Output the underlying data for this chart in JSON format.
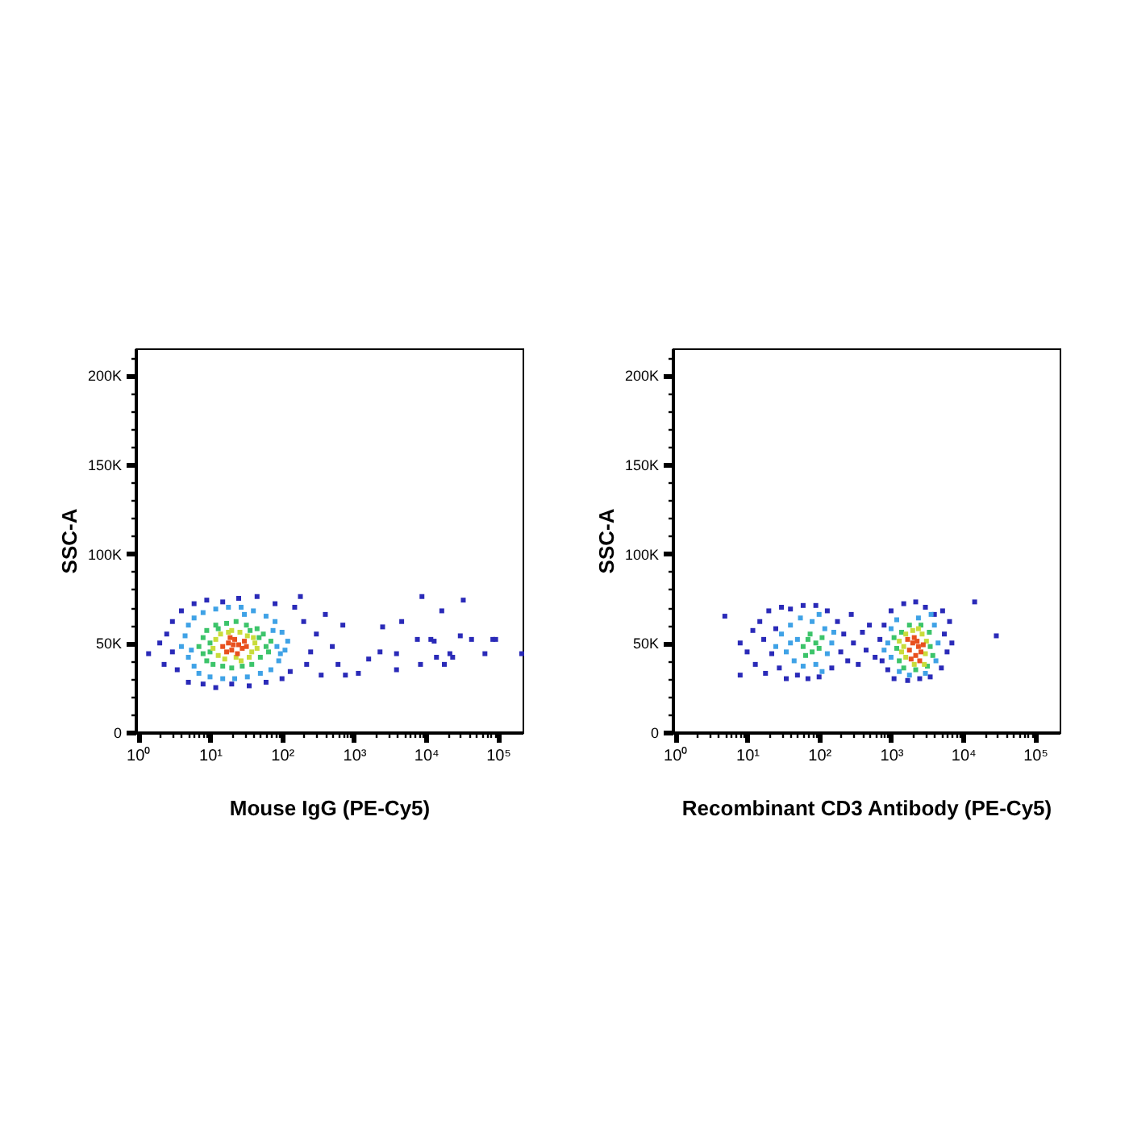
{
  "chart_data": [
    {
      "type": "scatter",
      "xlabel": "Mouse IgG (PE-Cy5)",
      "ylabel": "SSC-A",
      "log": "x",
      "xlim": [
        0.92,
        220000
      ],
      "ylim": [
        0,
        215000
      ],
      "xticks": [
        {
          "value": 1,
          "label": "10⁰"
        },
        {
          "value": 2,
          "label": null
        },
        {
          "value": 3,
          "label": null
        },
        {
          "value": 4,
          "label": null
        },
        {
          "value": 5,
          "label": null
        },
        {
          "value": 6,
          "label": null
        },
        {
          "value": 7,
          "label": null
        },
        {
          "value": 8,
          "label": null
        },
        {
          "value": 9,
          "label": null
        },
        {
          "value": 10,
          "label": "10¹"
        },
        {
          "value": 20,
          "label": null
        },
        {
          "value": 30,
          "label": null
        },
        {
          "value": 40,
          "label": null
        },
        {
          "value": 50,
          "label": null
        },
        {
          "value": 60,
          "label": null
        },
        {
          "value": 70,
          "label": null
        },
        {
          "value": 80,
          "label": null
        },
        {
          "value": 90,
          "label": null
        },
        {
          "value": 100,
          "label": "10²"
        },
        {
          "value": 200,
          "label": null
        },
        {
          "value": 300,
          "label": null
        },
        {
          "value": 400,
          "label": null
        },
        {
          "value": 500,
          "label": null
        },
        {
          "value": 600,
          "label": null
        },
        {
          "value": 700,
          "label": null
        },
        {
          "value": 800,
          "label": null
        },
        {
          "value": 900,
          "label": null
        },
        {
          "value": 1000,
          "label": "10³"
        },
        {
          "value": 2000,
          "label": null
        },
        {
          "value": 3000,
          "label": null
        },
        {
          "value": 4000,
          "label": null
        },
        {
          "value": 5000,
          "label": null
        },
        {
          "value": 6000,
          "label": null
        },
        {
          "value": 7000,
          "label": null
        },
        {
          "value": 8000,
          "label": null
        },
        {
          "value": 9000,
          "label": null
        },
        {
          "value": 10000,
          "label": "10⁴"
        },
        {
          "value": 20000,
          "label": null
        },
        {
          "value": 30000,
          "label": null
        },
        {
          "value": 40000,
          "label": null
        },
        {
          "value": 50000,
          "label": null
        },
        {
          "value": 60000,
          "label": null
        },
        {
          "value": 70000,
          "label": null
        },
        {
          "value": 80000,
          "label": null
        },
        {
          "value": 90000,
          "label": null
        },
        {
          "value": 100000,
          "label": "10⁵"
        }
      ],
      "yticks": [
        0,
        {
          "value": 10000,
          "label": null
        },
        {
          "value": 20000,
          "label": null
        },
        {
          "value": 30000,
          "label": null
        },
        {
          "value": 40000,
          "label": null
        },
        {
          "value": 50000,
          "label": "50K"
        },
        {
          "value": 60000,
          "label": null
        },
        {
          "value": 70000,
          "label": null
        },
        {
          "value": 80000,
          "label": null
        },
        {
          "value": 90000,
          "label": null
        },
        {
          "value": 100000,
          "label": "100K"
        },
        {
          "value": 110000,
          "label": null
        },
        {
          "value": 120000,
          "label": null
        },
        {
          "value": 130000,
          "label": null
        },
        {
          "value": 140000,
          "label": null
        },
        {
          "value": 150000,
          "label": "150K"
        },
        {
          "value": 160000,
          "label": null
        },
        {
          "value": 170000,
          "label": null
        },
        {
          "value": 180000,
          "label": null
        },
        {
          "value": 190000,
          "label": null
        },
        {
          "value": 200000,
          "label": "200K"
        },
        {
          "value": 210000,
          "label": null
        }
      ],
      "series": [
        {
          "color": "#2a2ab8",
          "x": [
            1.4,
            2,
            2.3,
            2.5,
            3,
            3,
            3.5,
            4,
            5,
            6,
            8,
            9,
            12,
            15,
            20,
            25,
            35,
            45,
            60,
            80,
            100,
            130,
            150,
            180,
            200,
            220,
            250,
            300,
            350,
            400,
            500,
            600,
            700,
            760,
            1150,
            1600,
            2300,
            2500,
            3900,
            3900,
            4600,
            7600,
            8400,
            8800,
            11700,
            13000,
            14000,
            16600,
            18000,
            21500,
            23500,
            30000,
            33000,
            43000,
            66000,
            85000,
            93000,
            214000
          ],
          "values": [
            44000,
            50000,
            38000,
            55000,
            45000,
            62000,
            35000,
            68000,
            28000,
            72000,
            27000,
            74000,
            25000,
            73000,
            27000,
            75000,
            26000,
            76000,
            28000,
            72000,
            30000,
            34000,
            70000,
            76000,
            62000,
            38000,
            45000,
            55000,
            32000,
            66000,
            48000,
            38000,
            60000,
            32000,
            33000,
            41000,
            45000,
            59000,
            35000,
            44000,
            62000,
            52000,
            38000,
            76000,
            52000,
            51000,
            42000,
            68000,
            38000,
            44000,
            42000,
            54000,
            74000,
            52000,
            44000,
            52000,
            52000,
            44000
          ]
        },
        {
          "color": "#3fa2e6",
          "x": [
            4,
            4.5,
            5,
            5,
            5.5,
            6,
            6,
            7,
            8,
            10,
            12,
            15,
            18,
            22,
            27,
            30,
            33,
            40,
            50,
            60,
            70,
            75,
            80,
            85,
            90,
            95,
            100,
            110,
            120
          ],
          "values": [
            48000,
            54000,
            42000,
            60000,
            46000,
            37000,
            64000,
            33000,
            67000,
            31000,
            69000,
            30000,
            70000,
            30000,
            70000,
            66000,
            31000,
            68000,
            33000,
            65000,
            35000,
            57000,
            62000,
            48000,
            40000,
            44000,
            56000,
            46000,
            51000
          ]
        },
        {
          "color": "#3cc46a",
          "x": [
            7,
            8,
            8,
            9,
            9,
            10,
            10,
            11,
            12,
            13,
            15,
            17,
            20,
            23,
            28,
            32,
            36,
            38,
            45,
            48,
            50,
            55,
            60,
            65,
            70
          ],
          "values": [
            48000,
            44000,
            53000,
            40000,
            57000,
            50000,
            45000,
            38000,
            60000,
            58000,
            37000,
            61000,
            36000,
            62000,
            37000,
            60000,
            57000,
            38000,
            58000,
            53000,
            42000,
            55000,
            48000,
            45000,
            51000
          ]
        },
        {
          "color": "#c9dc3a",
          "x": [
            11,
            12,
            13,
            14,
            16,
            18,
            20,
            23,
            26,
            27,
            33,
            35,
            38,
            40,
            42,
            45
          ],
          "values": [
            47000,
            52000,
            43000,
            55000,
            41000,
            56000,
            57000,
            42000,
            56000,
            40000,
            54000,
            42000,
            45000,
            53000,
            50000,
            47000
          ]
        },
        {
          "color": "#e8501e",
          "x": [
            15,
            17,
            18,
            19,
            20,
            21,
            22,
            24,
            25,
            28,
            30,
            32
          ],
          "values": [
            48000,
            45000,
            50000,
            53000,
            46000,
            49000,
            52000,
            44000,
            49000,
            47000,
            51000,
            48000
          ]
        }
      ]
    },
    {
      "type": "scatter",
      "xlabel": "Recombinant CD3 Antibody (PE-Cy5)",
      "ylabel": "SSC-A",
      "log": "x",
      "xlim": [
        0.92,
        220000
      ],
      "ylim": [
        0,
        215000
      ],
      "xticks": [
        {
          "value": 1,
          "label": "10⁰"
        },
        {
          "value": 2,
          "label": null
        },
        {
          "value": 3,
          "label": null
        },
        {
          "value": 4,
          "label": null
        },
        {
          "value": 5,
          "label": null
        },
        {
          "value": 6,
          "label": null
        },
        {
          "value": 7,
          "label": null
        },
        {
          "value": 8,
          "label": null
        },
        {
          "value": 9,
          "label": null
        },
        {
          "value": 10,
          "label": "10¹"
        },
        {
          "value": 20,
          "label": null
        },
        {
          "value": 30,
          "label": null
        },
        {
          "value": 40,
          "label": null
        },
        {
          "value": 50,
          "label": null
        },
        {
          "value": 60,
          "label": null
        },
        {
          "value": 70,
          "label": null
        },
        {
          "value": 80,
          "label": null
        },
        {
          "value": 90,
          "label": null
        },
        {
          "value": 100,
          "label": "10²"
        },
        {
          "value": 200,
          "label": null
        },
        {
          "value": 300,
          "label": null
        },
        {
          "value": 400,
          "label": null
        },
        {
          "value": 500,
          "label": null
        },
        {
          "value": 600,
          "label": null
        },
        {
          "value": 700,
          "label": null
        },
        {
          "value": 800,
          "label": null
        },
        {
          "value": 900,
          "label": null
        },
        {
          "value": 1000,
          "label": "10³"
        },
        {
          "value": 2000,
          "label": null
        },
        {
          "value": 3000,
          "label": null
        },
        {
          "value": 4000,
          "label": null
        },
        {
          "value": 5000,
          "label": null
        },
        {
          "value": 6000,
          "label": null
        },
        {
          "value": 7000,
          "label": null
        },
        {
          "value": 8000,
          "label": null
        },
        {
          "value": 9000,
          "label": null
        },
        {
          "value": 10000,
          "label": "10⁴"
        },
        {
          "value": 20000,
          "label": null
        },
        {
          "value": 30000,
          "label": null
        },
        {
          "value": 40000,
          "label": null
        },
        {
          "value": 50000,
          "label": null
        },
        {
          "value": 60000,
          "label": null
        },
        {
          "value": 70000,
          "label": null
        },
        {
          "value": 80000,
          "label": null
        },
        {
          "value": 90000,
          "label": null
        },
        {
          "value": 100000,
          "label": "10⁵"
        }
      ],
      "yticks": [
        0,
        {
          "value": 10000,
          "label": null
        },
        {
          "value": 20000,
          "label": null
        },
        {
          "value": 30000,
          "label": null
        },
        {
          "value": 40000,
          "label": null
        },
        {
          "value": 50000,
          "label": "50K"
        },
        {
          "value": 60000,
          "label": null
        },
        {
          "value": 70000,
          "label": null
        },
        {
          "value": 80000,
          "label": null
        },
        {
          "value": 90000,
          "label": null
        },
        {
          "value": 100000,
          "label": "100K"
        },
        {
          "value": 110000,
          "label": null
        },
        {
          "value": 120000,
          "label": null
        },
        {
          "value": 130000,
          "label": null
        },
        {
          "value": 140000,
          "label": null
        },
        {
          "value": 150000,
          "label": "150K"
        },
        {
          "value": 160000,
          "label": null
        },
        {
          "value": 170000,
          "label": null
        },
        {
          "value": 180000,
          "label": null
        },
        {
          "value": 190000,
          "label": null
        },
        {
          "value": 200000,
          "label": "200K"
        },
        {
          "value": 210000,
          "label": null
        }
      ],
      "series": [
        {
          "color": "#2a2ab8",
          "x": [
            4.9,
            8,
            8,
            10,
            12,
            13,
            15,
            17,
            18,
            20,
            22,
            25,
            28,
            30,
            35,
            40,
            50,
            60,
            70,
            90,
            100,
            130,
            150,
            180,
            200,
            220,
            250,
            280,
            300,
            350,
            400,
            450,
            500,
            600,
            700,
            750,
            800,
            900,
            1000,
            1100,
            1500,
            1700,
            2200,
            2500,
            3000,
            3500,
            4000,
            5000,
            5500,
            6000,
            6500,
            5200,
            7000,
            14500,
            29000
          ],
          "values": [
            65000,
            32000,
            50000,
            45000,
            57000,
            38000,
            62000,
            52000,
            33000,
            68000,
            44000,
            58000,
            36000,
            70000,
            30000,
            69000,
            32000,
            71000,
            30000,
            71000,
            31000,
            68000,
            36000,
            62000,
            45000,
            55000,
            40000,
            66000,
            50000,
            38000,
            56000,
            46000,
            60000,
            42000,
            52000,
            40000,
            60000,
            35000,
            68000,
            30000,
            72000,
            29000,
            73000,
            30000,
            70000,
            31000,
            66000,
            36000,
            55000,
            45000,
            62000,
            68000,
            50000,
            73000,
            54000
          ]
        },
        {
          "color": "#3fa2e6",
          "x": [
            25,
            30,
            35,
            40,
            40,
            45,
            50,
            55,
            60,
            80,
            90,
            100,
            110,
            120,
            130,
            150,
            160,
            800,
            900,
            1000,
            1000,
            1200,
            1300,
            1800,
            2400,
            3000,
            3600,
            4000,
            4200,
            4500
          ],
          "values": [
            48000,
            55000,
            45000,
            50000,
            60000,
            40000,
            52000,
            64000,
            37000,
            62000,
            38000,
            66000,
            34000,
            58000,
            44000,
            50000,
            56000,
            46000,
            50000,
            42000,
            58000,
            63000,
            34000,
            32000,
            64000,
            33000,
            66000,
            60000,
            40000,
            50000
          ]
        },
        {
          "color": "#3cc46a",
          "x": [
            60,
            65,
            70,
            75,
            80,
            90,
            100,
            110,
            1100,
            1200,
            1300,
            1400,
            1500,
            1800,
            2200,
            2600,
            3200,
            3400,
            3500,
            3800
          ],
          "values": [
            48000,
            43000,
            52000,
            55000,
            45000,
            50000,
            47000,
            53000,
            53000,
            47000,
            40000,
            56000,
            36000,
            60000,
            35000,
            60000,
            37000,
            56000,
            48000,
            43000
          ]
        },
        {
          "color": "#c9dc3a",
          "x": [
            1300,
            1400,
            1500,
            1600,
            1600,
            2000,
            2100,
            2400,
            2700,
            2900,
            3000,
            3100
          ],
          "values": [
            51000,
            45000,
            48000,
            42000,
            55000,
            57000,
            38000,
            58000,
            55000,
            38000,
            44000,
            51000
          ]
        },
        {
          "color": "#e8501e",
          "x": [
            1700,
            1800,
            1900,
            2000,
            2100,
            2200,
            2300,
            2400,
            2500,
            2600,
            2800
          ],
          "values": [
            52000,
            46000,
            41000,
            50000,
            53000,
            43000,
            51000,
            48000,
            40000,
            45000,
            49000
          ]
        }
      ]
    }
  ]
}
